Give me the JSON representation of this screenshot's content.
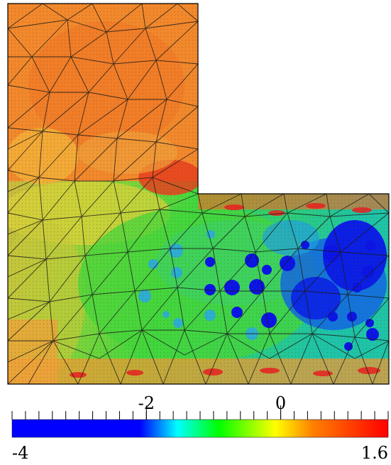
{
  "figure": {
    "colorbar": {
      "min_label": "-4",
      "max_label": "1.6",
      "major_ticks": [
        {
          "value": -2,
          "label": "-2"
        },
        {
          "value": 0,
          "label": "0"
        }
      ],
      "range": [
        -4,
        1.6
      ],
      "colormap": [
        "#0000ff",
        "#0000ff",
        "#00ffff",
        "#00ff00",
        "#ffff00",
        "#ff7f00",
        "#ff0000"
      ]
    },
    "domain_shape": "L-shaped region with triangular finite-element mesh"
  }
}
